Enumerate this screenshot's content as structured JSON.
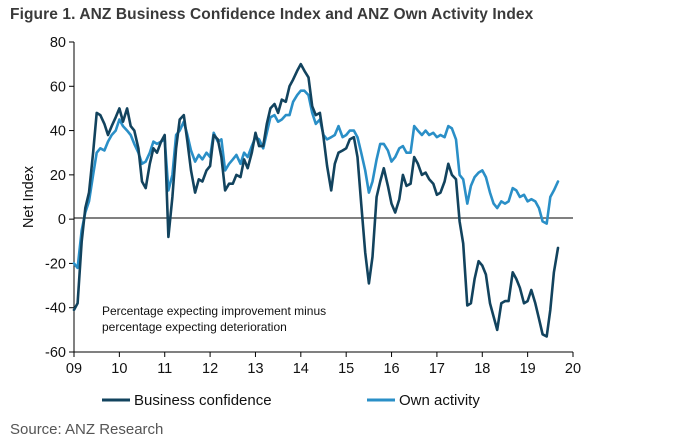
{
  "title": "Figure 1. ANZ Business Confidence Index and ANZ Own Activity Index",
  "source": "Source: ANZ Research",
  "chart_data": {
    "type": "line",
    "ylabel": "Net Index",
    "ylim": [
      -60,
      80
    ],
    "yticks": [
      80,
      60,
      40,
      20,
      0,
      -20,
      -40,
      -60
    ],
    "xlim": [
      2009,
      2020
    ],
    "xticks": [
      {
        "v": 2009,
        "label": "09"
      },
      {
        "v": 2010,
        "label": "10"
      },
      {
        "v": 2011,
        "label": "11"
      },
      {
        "v": 2012,
        "label": "12"
      },
      {
        "v": 2013,
        "label": "13"
      },
      {
        "v": 2014,
        "label": "14"
      },
      {
        "v": 2015,
        "label": "15"
      },
      {
        "v": 2016,
        "label": "16"
      },
      {
        "v": 2017,
        "label": "17"
      },
      {
        "v": 2018,
        "label": "18"
      },
      {
        "v": 2019,
        "label": "19"
      },
      {
        "v": 2020,
        "label": "20"
      }
    ],
    "annotation": [
      "Percentage expecting improvement minus",
      "percentage expecting deterioration"
    ],
    "series": [
      {
        "name": "Business confidence",
        "color": "#12435e",
        "points": [
          [
            2009.0,
            -41
          ],
          [
            2009.08,
            -38
          ],
          [
            2009.17,
            -10
          ],
          [
            2009.25,
            5
          ],
          [
            2009.33,
            12
          ],
          [
            2009.42,
            30
          ],
          [
            2009.5,
            48
          ],
          [
            2009.58,
            47
          ],
          [
            2009.67,
            43
          ],
          [
            2009.75,
            38
          ],
          [
            2009.83,
            42
          ],
          [
            2009.92,
            46
          ],
          [
            2010.0,
            50
          ],
          [
            2010.08,
            44
          ],
          [
            2010.17,
            50
          ],
          [
            2010.25,
            42
          ],
          [
            2010.33,
            40
          ],
          [
            2010.42,
            32
          ],
          [
            2010.5,
            17
          ],
          [
            2010.58,
            14
          ],
          [
            2010.67,
            25
          ],
          [
            2010.75,
            32
          ],
          [
            2010.83,
            30
          ],
          [
            2010.92,
            35
          ],
          [
            2011.0,
            38
          ],
          [
            2011.08,
            -8
          ],
          [
            2011.17,
            10
          ],
          [
            2011.25,
            32
          ],
          [
            2011.33,
            45
          ],
          [
            2011.42,
            47
          ],
          [
            2011.5,
            35
          ],
          [
            2011.58,
            22
          ],
          [
            2011.67,
            12
          ],
          [
            2011.75,
            18
          ],
          [
            2011.83,
            17
          ],
          [
            2011.92,
            22
          ],
          [
            2012.0,
            24
          ],
          [
            2012.08,
            38
          ],
          [
            2012.17,
            36
          ],
          [
            2012.25,
            28
          ],
          [
            2012.33,
            13
          ],
          [
            2012.42,
            16
          ],
          [
            2012.5,
            16
          ],
          [
            2012.58,
            20
          ],
          [
            2012.67,
            19
          ],
          [
            2012.75,
            27
          ],
          [
            2012.83,
            23
          ],
          [
            2012.92,
            30
          ],
          [
            2013.0,
            39
          ],
          [
            2013.08,
            33
          ],
          [
            2013.17,
            33
          ],
          [
            2013.25,
            43
          ],
          [
            2013.33,
            50
          ],
          [
            2013.42,
            52
          ],
          [
            2013.5,
            48
          ],
          [
            2013.58,
            54
          ],
          [
            2013.67,
            53
          ],
          [
            2013.75,
            60
          ],
          [
            2013.83,
            63
          ],
          [
            2013.92,
            67
          ],
          [
            2014.0,
            70
          ],
          [
            2014.08,
            67
          ],
          [
            2014.17,
            64
          ],
          [
            2014.25,
            51
          ],
          [
            2014.33,
            47
          ],
          [
            2014.42,
            48
          ],
          [
            2014.5,
            37
          ],
          [
            2014.58,
            24
          ],
          [
            2014.67,
            13
          ],
          [
            2014.75,
            25
          ],
          [
            2014.83,
            30
          ],
          [
            2014.92,
            31
          ],
          [
            2015.0,
            32
          ],
          [
            2015.08,
            36
          ],
          [
            2015.17,
            37
          ],
          [
            2015.25,
            28
          ],
          [
            2015.33,
            7
          ],
          [
            2015.42,
            -15
          ],
          [
            2015.5,
            -29
          ],
          [
            2015.58,
            -17
          ],
          [
            2015.67,
            10
          ],
          [
            2015.75,
            17
          ],
          [
            2015.83,
            23
          ],
          [
            2015.92,
            15
          ],
          [
            2016.0,
            7
          ],
          [
            2016.08,
            3
          ],
          [
            2016.17,
            9
          ],
          [
            2016.25,
            20
          ],
          [
            2016.33,
            15
          ],
          [
            2016.42,
            16
          ],
          [
            2016.5,
            28
          ],
          [
            2016.58,
            25
          ],
          [
            2016.67,
            20
          ],
          [
            2016.75,
            21
          ],
          [
            2016.83,
            18
          ],
          [
            2016.92,
            16
          ],
          [
            2017.0,
            11
          ],
          [
            2017.08,
            12
          ],
          [
            2017.17,
            17
          ],
          [
            2017.25,
            25
          ],
          [
            2017.33,
            20
          ],
          [
            2017.42,
            18
          ],
          [
            2017.5,
            -1
          ],
          [
            2017.58,
            -11
          ],
          [
            2017.67,
            -39
          ],
          [
            2017.75,
            -38
          ],
          [
            2017.83,
            -27
          ],
          [
            2017.92,
            -19
          ],
          [
            2018.0,
            -21
          ],
          [
            2018.08,
            -25
          ],
          [
            2018.17,
            -38
          ],
          [
            2018.25,
            -44
          ],
          [
            2018.33,
            -50
          ],
          [
            2018.42,
            -38
          ],
          [
            2018.5,
            -37
          ],
          [
            2018.58,
            -37
          ],
          [
            2018.67,
            -24
          ],
          [
            2018.75,
            -27
          ],
          [
            2018.83,
            -31
          ],
          [
            2018.92,
            -38
          ],
          [
            2019.0,
            -37
          ],
          [
            2019.08,
            -32
          ],
          [
            2019.17,
            -38
          ],
          [
            2019.25,
            -45
          ],
          [
            2019.33,
            -52
          ],
          [
            2019.42,
            -53
          ],
          [
            2019.5,
            -41
          ],
          [
            2019.58,
            -24
          ],
          [
            2019.67,
            -13
          ]
        ]
      },
      {
        "name": "Own activity",
        "color": "#2a8fc7",
        "points": [
          [
            2009.0,
            -20
          ],
          [
            2009.08,
            -22
          ],
          [
            2009.17,
            -5
          ],
          [
            2009.25,
            3
          ],
          [
            2009.33,
            8
          ],
          [
            2009.42,
            20
          ],
          [
            2009.5,
            30
          ],
          [
            2009.58,
            32
          ],
          [
            2009.67,
            31
          ],
          [
            2009.75,
            35
          ],
          [
            2009.83,
            38
          ],
          [
            2009.92,
            40
          ],
          [
            2010.0,
            45
          ],
          [
            2010.08,
            42
          ],
          [
            2010.17,
            40
          ],
          [
            2010.25,
            38
          ],
          [
            2010.33,
            34
          ],
          [
            2010.42,
            30
          ],
          [
            2010.5,
            25
          ],
          [
            2010.58,
            26
          ],
          [
            2010.67,
            30
          ],
          [
            2010.75,
            35
          ],
          [
            2010.83,
            34
          ],
          [
            2010.92,
            35
          ],
          [
            2011.0,
            36
          ],
          [
            2011.08,
            13
          ],
          [
            2011.17,
            20
          ],
          [
            2011.25,
            38
          ],
          [
            2011.33,
            40
          ],
          [
            2011.42,
            44
          ],
          [
            2011.5,
            38
          ],
          [
            2011.58,
            31
          ],
          [
            2011.67,
            26
          ],
          [
            2011.75,
            29
          ],
          [
            2011.83,
            27
          ],
          [
            2011.92,
            30
          ],
          [
            2012.0,
            28
          ],
          [
            2012.08,
            39
          ],
          [
            2012.17,
            35
          ],
          [
            2012.25,
            36
          ],
          [
            2012.33,
            22
          ],
          [
            2012.42,
            25
          ],
          [
            2012.5,
            27
          ],
          [
            2012.58,
            29
          ],
          [
            2012.67,
            25
          ],
          [
            2012.75,
            30
          ],
          [
            2012.83,
            28
          ],
          [
            2012.92,
            33
          ],
          [
            2013.0,
            37
          ],
          [
            2013.08,
            36
          ],
          [
            2013.17,
            32
          ],
          [
            2013.25,
            39
          ],
          [
            2013.33,
            46
          ],
          [
            2013.42,
            47
          ],
          [
            2013.5,
            44
          ],
          [
            2013.58,
            45
          ],
          [
            2013.67,
            47
          ],
          [
            2013.75,
            47
          ],
          [
            2013.83,
            53
          ],
          [
            2013.92,
            56
          ],
          [
            2014.0,
            58
          ],
          [
            2014.08,
            58
          ],
          [
            2014.17,
            56
          ],
          [
            2014.25,
            48
          ],
          [
            2014.33,
            43
          ],
          [
            2014.42,
            45
          ],
          [
            2014.5,
            38
          ],
          [
            2014.58,
            36
          ],
          [
            2014.67,
            37
          ],
          [
            2014.75,
            38
          ],
          [
            2014.83,
            42
          ],
          [
            2014.92,
            37
          ],
          [
            2015.0,
            38
          ],
          [
            2015.08,
            40
          ],
          [
            2015.17,
            40
          ],
          [
            2015.25,
            37
          ],
          [
            2015.33,
            30
          ],
          [
            2015.42,
            22
          ],
          [
            2015.5,
            12
          ],
          [
            2015.58,
            17
          ],
          [
            2015.67,
            27
          ],
          [
            2015.75,
            34
          ],
          [
            2015.83,
            34
          ],
          [
            2015.92,
            31
          ],
          [
            2016.0,
            26
          ],
          [
            2016.08,
            28
          ],
          [
            2016.17,
            32
          ],
          [
            2016.25,
            33
          ],
          [
            2016.33,
            30
          ],
          [
            2016.42,
            30
          ],
          [
            2016.5,
            42
          ],
          [
            2016.58,
            40
          ],
          [
            2016.67,
            38
          ],
          [
            2016.75,
            40
          ],
          [
            2016.83,
            38
          ],
          [
            2016.92,
            39
          ],
          [
            2017.0,
            37
          ],
          [
            2017.08,
            38
          ],
          [
            2017.17,
            37
          ],
          [
            2017.25,
            42
          ],
          [
            2017.33,
            41
          ],
          [
            2017.42,
            36
          ],
          [
            2017.5,
            20
          ],
          [
            2017.58,
            18
          ],
          [
            2017.67,
            7
          ],
          [
            2017.75,
            15
          ],
          [
            2017.83,
            19
          ],
          [
            2017.92,
            21
          ],
          [
            2018.0,
            22
          ],
          [
            2018.08,
            19
          ],
          [
            2018.17,
            12
          ],
          [
            2018.25,
            7
          ],
          [
            2018.33,
            5
          ],
          [
            2018.42,
            8
          ],
          [
            2018.5,
            7
          ],
          [
            2018.58,
            8
          ],
          [
            2018.67,
            14
          ],
          [
            2018.75,
            13
          ],
          [
            2018.83,
            10
          ],
          [
            2018.92,
            11
          ],
          [
            2019.0,
            8
          ],
          [
            2019.08,
            9
          ],
          [
            2019.17,
            8
          ],
          [
            2019.25,
            5
          ],
          [
            2019.33,
            -1
          ],
          [
            2019.42,
            -2
          ],
          [
            2019.5,
            10
          ],
          [
            2019.58,
            13
          ],
          [
            2019.67,
            17
          ]
        ]
      }
    ]
  }
}
